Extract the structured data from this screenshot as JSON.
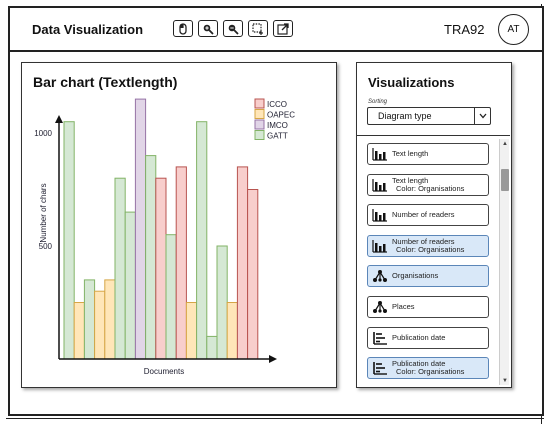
{
  "header": {
    "title": "Data Visualization",
    "user_code": "TRA92",
    "avatar_initials": "AT",
    "tools": [
      "mouse-icon",
      "zoom-in-icon",
      "zoom-out-icon",
      "select-area-icon",
      "open-external-icon"
    ]
  },
  "chart": {
    "title": "Bar chart (Textlength)"
  },
  "chart_data": {
    "type": "bar",
    "title": "Bar chart (Textlength)",
    "xlabel": "Documents",
    "ylabel": "Number of chars",
    "ylim": [
      0,
      1100
    ],
    "yticks": [
      500,
      1000
    ],
    "legend": [
      {
        "name": "ICCO",
        "color": "#f8cecc"
      },
      {
        "name": "OAPEC",
        "color": "#ffe6b8"
      },
      {
        "name": "IMCO",
        "color": "#e1d5e7"
      },
      {
        "name": "GATT",
        "color": "#d5e8d4"
      }
    ],
    "legend_position": "top-right",
    "bars": [
      {
        "group": "GATT",
        "value": 1050
      },
      {
        "group": "OAPEC",
        "value": 250
      },
      {
        "group": "GATT",
        "value": 350
      },
      {
        "group": "OAPEC",
        "value": 300
      },
      {
        "group": "OAPEC",
        "value": 350
      },
      {
        "group": "GATT",
        "value": 800
      },
      {
        "group": "GATT",
        "value": 650
      },
      {
        "group": "IMCO",
        "value": 1150
      },
      {
        "group": "GATT",
        "value": 900
      },
      {
        "group": "ICCO",
        "value": 800
      },
      {
        "group": "GATT",
        "value": 550
      },
      {
        "group": "ICCO",
        "value": 850
      },
      {
        "group": "OAPEC",
        "value": 250
      },
      {
        "group": "GATT",
        "value": 1050
      },
      {
        "group": "GATT",
        "value": 100
      },
      {
        "group": "GATT",
        "value": 500
      },
      {
        "group": "OAPEC",
        "value": 250
      },
      {
        "group": "ICCO",
        "value": 850
      },
      {
        "group": "ICCO",
        "value": 750
      }
    ]
  },
  "visualizations": {
    "title": "Visualizations",
    "sorting_label": "Sorting",
    "sorting_value": "Diagram type",
    "items": [
      {
        "icon": "bar-chart-icon",
        "label": "Text length",
        "sub": "",
        "selected": false
      },
      {
        "icon": "bar-chart-icon",
        "label": "Text length",
        "sub": "Color: Organisations",
        "selected": false
      },
      {
        "icon": "bar-chart-icon",
        "label": "Number of readers",
        "sub": "",
        "selected": false
      },
      {
        "icon": "bar-chart-icon",
        "label": "Number of readers",
        "sub": "Color: Organisations",
        "selected": true
      },
      {
        "icon": "network-icon",
        "label": "Organisations",
        "sub": "",
        "selected": true
      },
      {
        "icon": "network-icon",
        "label": "Places",
        "sub": "",
        "selected": false
      },
      {
        "icon": "timeline-icon",
        "label": "Publication date",
        "sub": "",
        "selected": false
      },
      {
        "icon": "timeline-icon",
        "label": "Publication date",
        "sub": "Color: Organisations",
        "selected": true
      }
    ]
  }
}
